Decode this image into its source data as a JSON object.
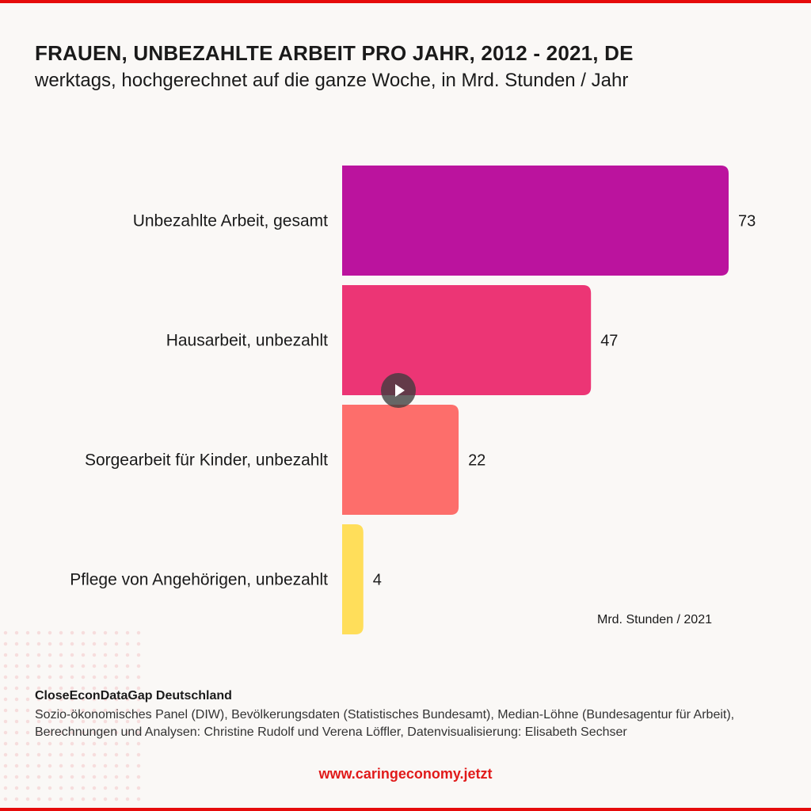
{
  "title": "FRAUEN, UNBEZAHLTE ARBEIT PRO JAHR, 2012 - 2021, DE",
  "subtitle": "werktags, hochgerechnet auf die ganze Woche, in Mrd. Stunden / Jahr",
  "unit_note": "Mrd. Stunden / 2021",
  "source": {
    "heading": "CloseEconDataGap Deutschland",
    "text": "Sozio-ökonomisches Panel (DIW), Bevölkerungsdaten (Statistisches Bundesamt), Median-Löhne (Bundesagentur für Arbeit), Berechnungen und Analysen: Christine Rudolf und Verena Löffler, Datenvisualisierung: Elisabeth Sechser"
  },
  "website": "www.caringeconomy.jetzt",
  "icons": {
    "video_control": "play-icon"
  },
  "colors": {
    "border": "#e60b0b",
    "url": "#e11a1a",
    "background": "#faf8f6"
  },
  "chart_data": {
    "type": "bar",
    "orientation": "horizontal",
    "categories": [
      "Unbezahlte Arbeit, gesamt",
      "Hausarbeit, unbezahlt",
      "Sorgearbeit für Kinder, unbezahlt",
      "Pflege von Angehörigen, unbezahlt"
    ],
    "values": [
      73,
      47,
      22,
      4
    ],
    "value_labels": [
      "73",
      "47",
      "22",
      "4"
    ],
    "colors": [
      "#bb139e",
      "#ec3575",
      "#fd6e6b",
      "#ffde5a"
    ],
    "xlim": [
      0,
      73
    ],
    "grid": false,
    "legend": "none"
  }
}
